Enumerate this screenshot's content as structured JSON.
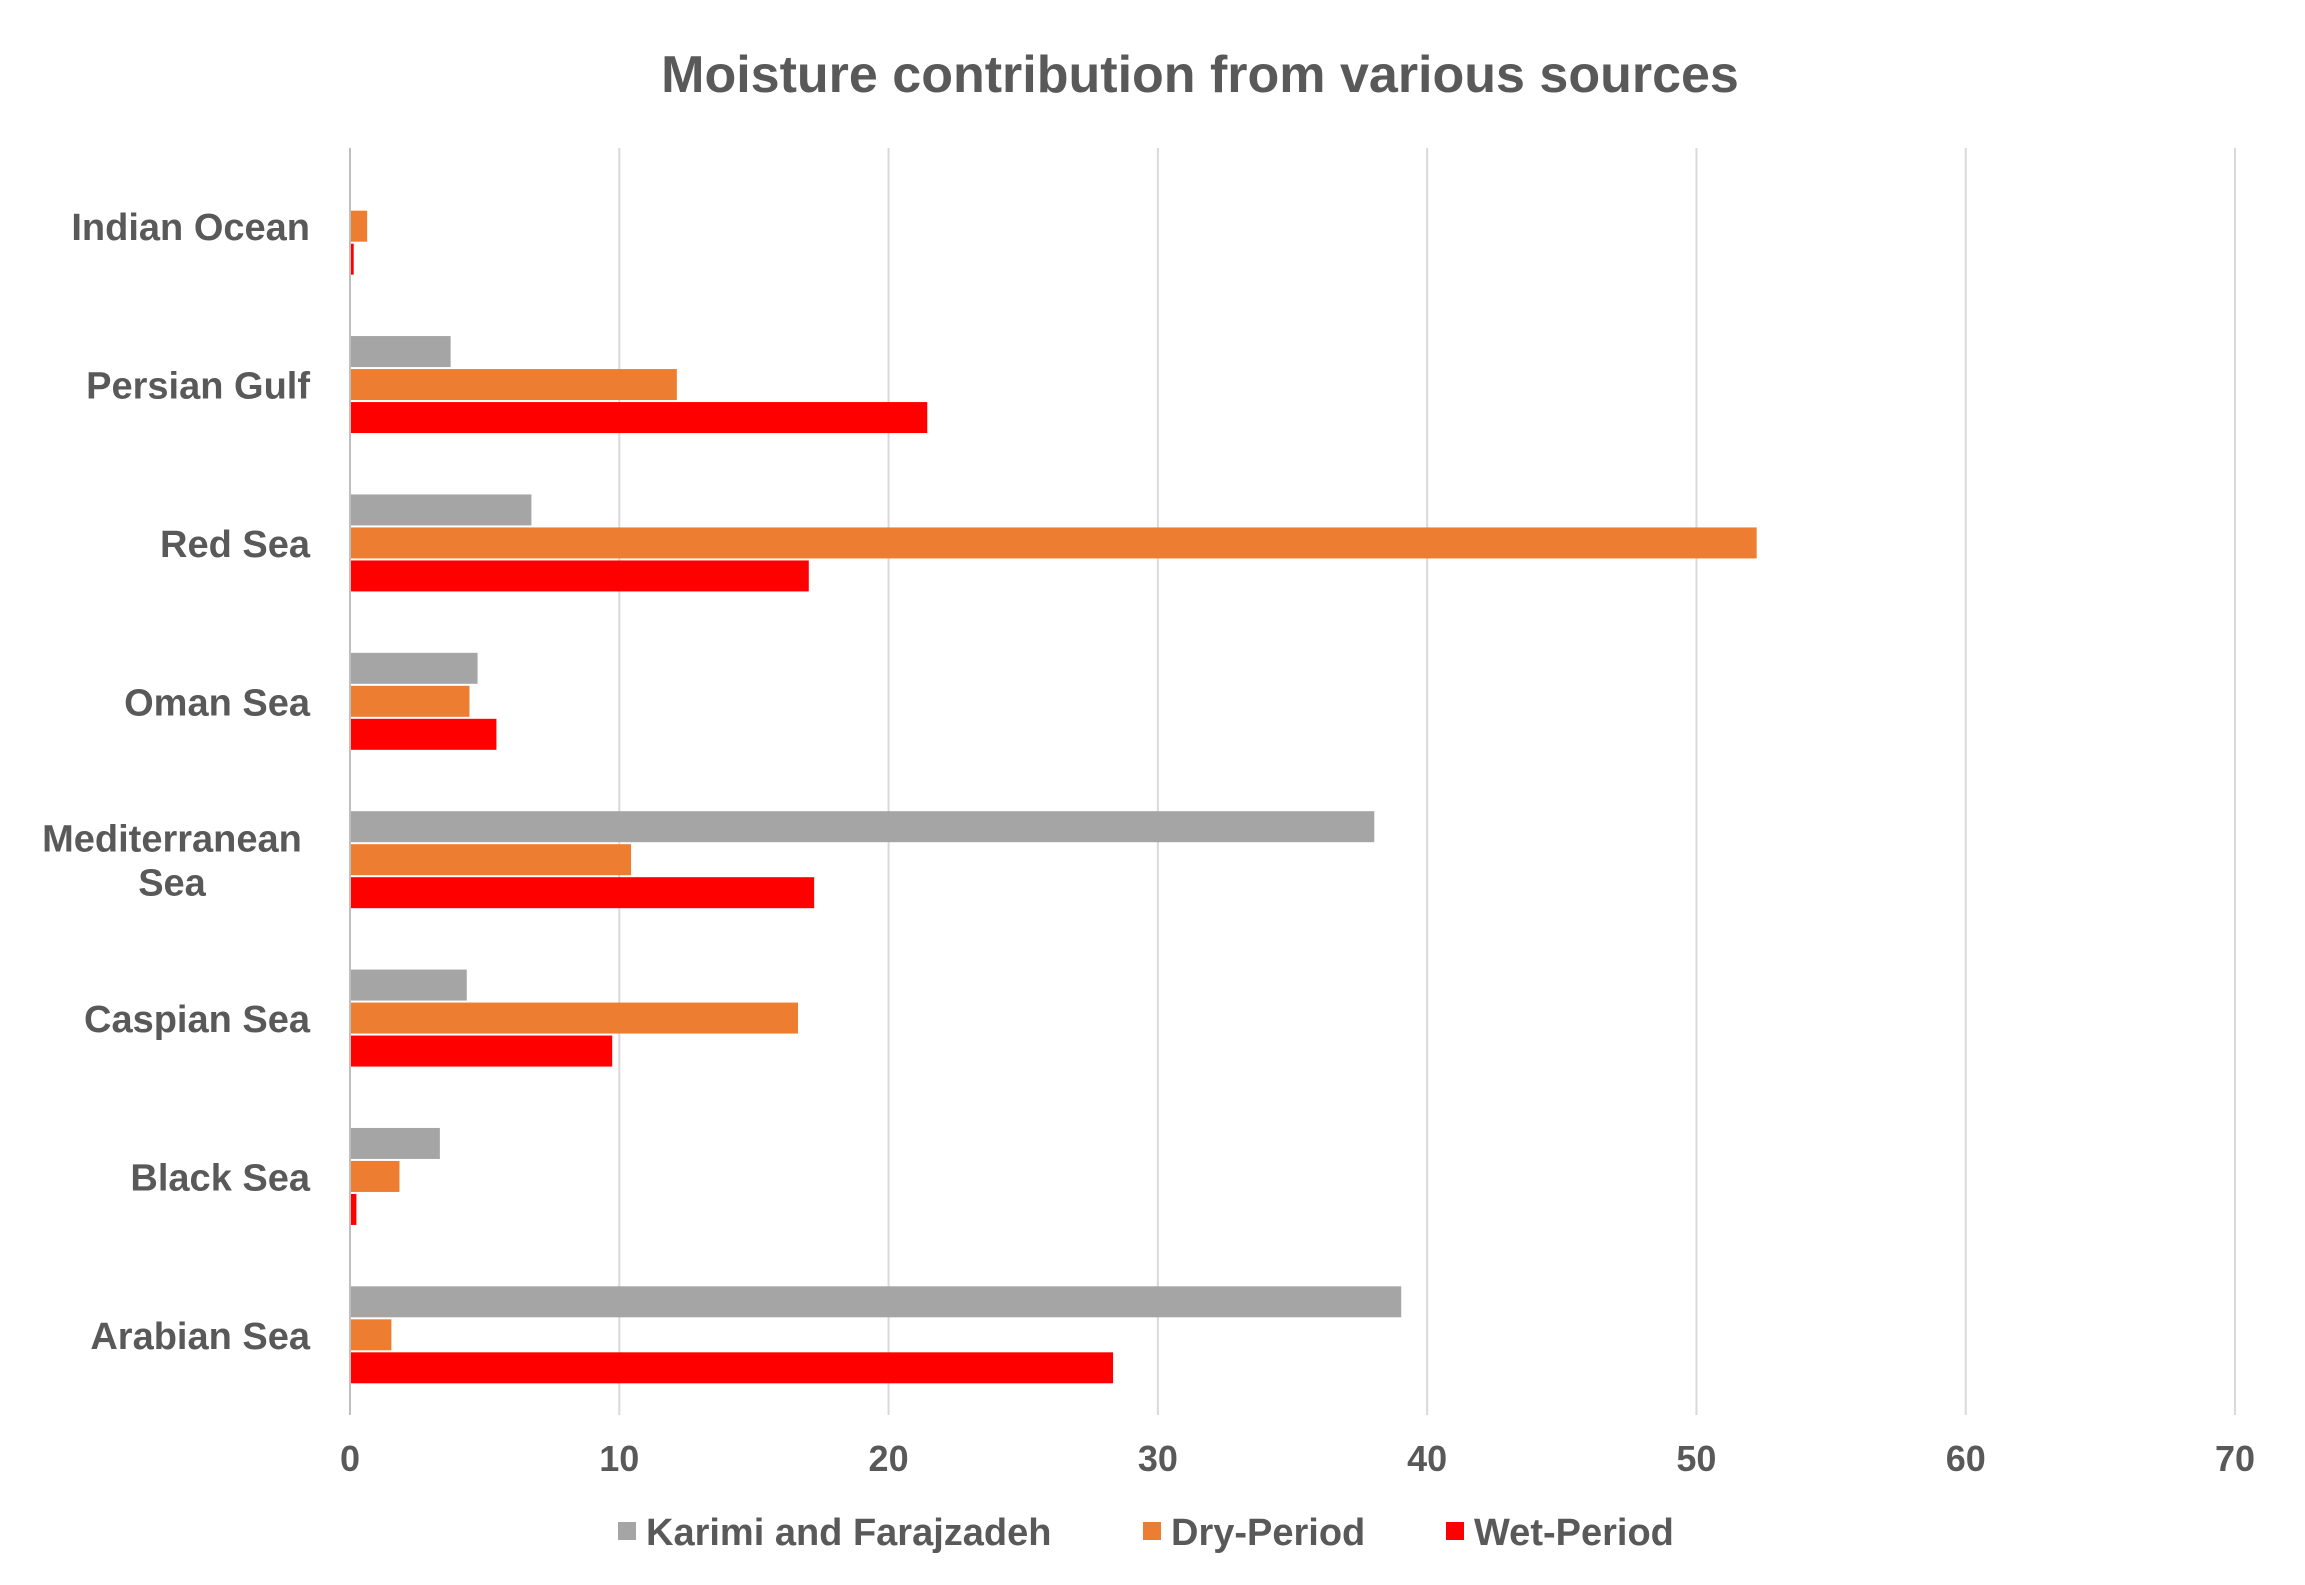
{
  "chart_data": {
    "type": "bar",
    "orientation": "horizontal",
    "title": "Moisture contribution from various sources",
    "xlabel": "",
    "ylabel": "",
    "xlim": [
      0,
      70
    ],
    "ticks": [
      0,
      10,
      20,
      30,
      40,
      50,
      60,
      70
    ],
    "grid": true,
    "legend_position": "bottom",
    "categories": [
      [
        "Indian Ocean"
      ],
      [
        "Persian Gulf"
      ],
      [
        "Red Sea"
      ],
      [
        "Oman Sea"
      ],
      [
        "Mediterranean",
        "Sea"
      ],
      [
        "Caspian Sea"
      ],
      [
        "Black Sea"
      ],
      [
        "Arabian Sea"
      ]
    ],
    "series": [
      {
        "name": "Karimi and Farajzadeh",
        "color": "#a5a5a5",
        "values": [
          0,
          3.7,
          6.7,
          4.7,
          38.0,
          4.3,
          3.3,
          39.0
        ]
      },
      {
        "name": "Dry-Period",
        "color": "#ed7d31",
        "values": [
          0.6,
          12.1,
          52.2,
          4.4,
          10.4,
          16.6,
          1.8,
          1.5
        ]
      },
      {
        "name": "Wet-Period",
        "color": "#ff0000",
        "values": [
          0.1,
          21.4,
          17.0,
          5.4,
          17.2,
          9.7,
          0.2,
          28.3
        ]
      }
    ]
  }
}
